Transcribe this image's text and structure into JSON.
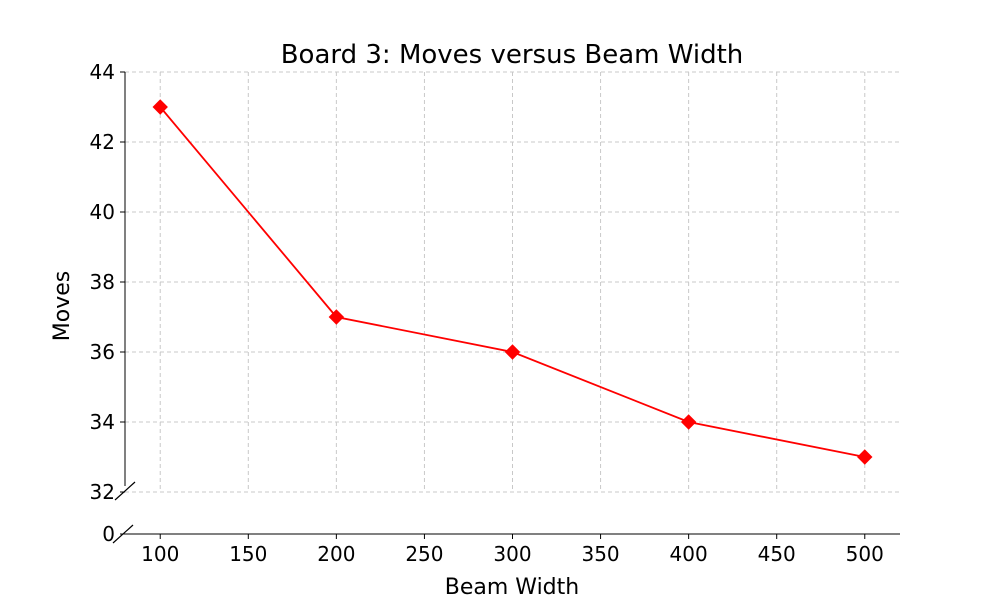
{
  "chart_data": {
    "type": "line",
    "title": "Board 3: Moves versus Beam Width",
    "xlabel": "Beam Width",
    "ylabel": "Moves",
    "x": [
      100,
      200,
      300,
      400,
      500
    ],
    "series": [
      {
        "name": "",
        "values": [
          43,
          37,
          36,
          34,
          33
        ],
        "color": "#ff0000",
        "marker": "diamond"
      }
    ],
    "xlim": [
      80,
      520
    ],
    "xticks": [
      100,
      150,
      200,
      250,
      300,
      350,
      400,
      450,
      500
    ],
    "ylim": [
      32,
      44
    ],
    "yticks": [
      32,
      34,
      36,
      38,
      40,
      42,
      44
    ],
    "broken_axis_lower_tick": 0,
    "grid": true
  }
}
